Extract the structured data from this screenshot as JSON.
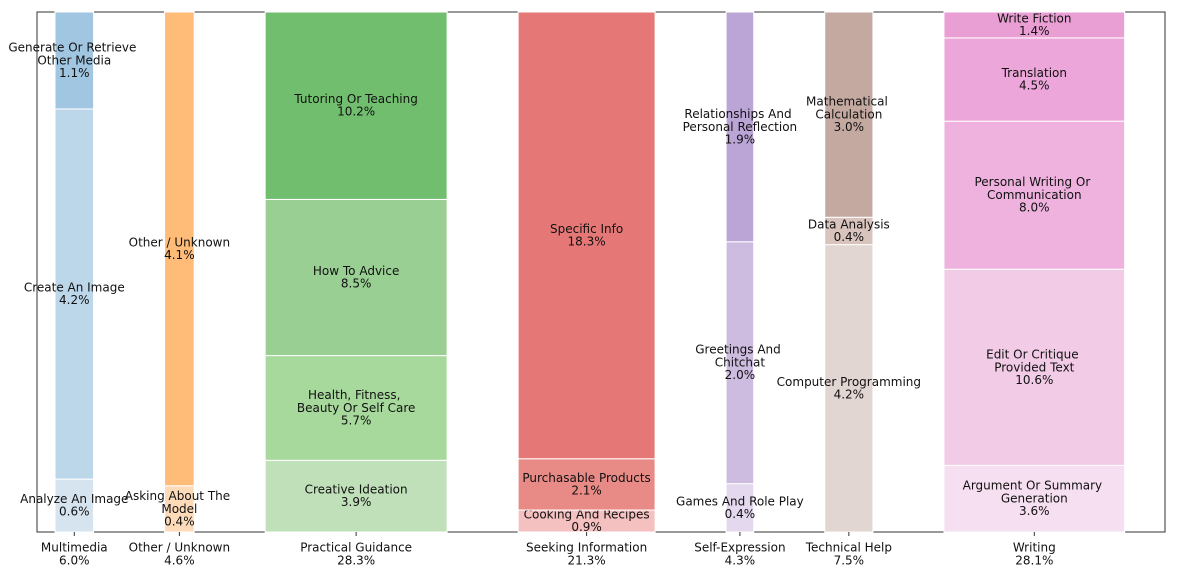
{
  "chart_data": {
    "type": "mosaic",
    "columns": [
      {
        "name": "Multimedia",
        "total": 6.0,
        "total_label": "6.0%",
        "segments": [
          {
            "name": "Analyze An Image",
            "value": 0.6,
            "value_label": "0.6%",
            "color": "#d6e4ef"
          },
          {
            "name": "Create An Image",
            "value": 4.2,
            "value_label": "4.2%",
            "color": "#bdd7ea"
          },
          {
            "name": "Generate Or Retrieve Other Media",
            "value": 1.1,
            "value_label": "1.1%",
            "color": "#a1c6e2"
          }
        ]
      },
      {
        "name": "Other / Unknown",
        "total": 4.6,
        "total_label": "4.6%",
        "segments": [
          {
            "name": "Asking About The Model",
            "value": 0.4,
            "value_label": "0.4%",
            "color": "#fddbb9"
          },
          {
            "name": "Other / Unknown",
            "value": 4.1,
            "value_label": "4.1%",
            "color": "#ffbb78"
          }
        ]
      },
      {
        "name": "Practical Guidance",
        "total": 28.3,
        "total_label": "28.3%",
        "segments": [
          {
            "name": "Creative Ideation",
            "value": 3.9,
            "value_label": "3.9%",
            "color": "#bfe0b8"
          },
          {
            "name": "Health, Fitness, Beauty Or Self Care",
            "value": 5.7,
            "value_label": "5.7%",
            "color": "#a8d99c"
          },
          {
            "name": "How To Advice",
            "value": 8.5,
            "value_label": "8.5%",
            "color": "#9acf93"
          },
          {
            "name": "Tutoring Or Teaching",
            "value": 10.2,
            "value_label": "10.2%",
            "color": "#71bf6e"
          }
        ]
      },
      {
        "name": "Seeking Information",
        "total": 21.3,
        "total_label": "21.3%",
        "segments": [
          {
            "name": "Cooking And Recipes",
            "value": 0.9,
            "value_label": "0.9%",
            "color": "#f4c0c0"
          },
          {
            "name": "Purchasable Products",
            "value": 2.1,
            "value_label": "2.1%",
            "color": "#e88a86"
          },
          {
            "name": "Specific Info",
            "value": 18.3,
            "value_label": "18.3%",
            "color": "#e67777"
          }
        ]
      },
      {
        "name": "Self-Expression",
        "total": 4.3,
        "total_label": "4.3%",
        "segments": [
          {
            "name": "Games And Role Play",
            "value": 0.4,
            "value_label": "0.4%",
            "color": "#e4d8ee"
          },
          {
            "name": "Greetings And Chitchat",
            "value": 2.0,
            "value_label": "2.0%",
            "color": "#cdbbe0"
          },
          {
            "name": "Relationships And Personal Reflection",
            "value": 1.9,
            "value_label": "1.9%",
            "color": "#bba5d6"
          }
        ]
      },
      {
        "name": "Technical Help",
        "total": 7.5,
        "total_label": "7.5%",
        "segments": [
          {
            "name": "Computer Programming",
            "value": 4.2,
            "value_label": "4.2%",
            "color": "#e2d6d2"
          },
          {
            "name": "Data Analysis",
            "value": 0.4,
            "value_label": "0.4%",
            "color": "#d8c3bd"
          },
          {
            "name": "Mathematical Calculation",
            "value": 3.0,
            "value_label": "3.0%",
            "color": "#c4a9a1"
          }
        ]
      },
      {
        "name": "Writing",
        "total": 28.1,
        "total_label": "28.1%",
        "segments": [
          {
            "name": "Argument Or Summary Generation",
            "value": 3.6,
            "value_label": "3.6%",
            "color": "#f6dff0"
          },
          {
            "name": "Edit Or Critique Provided Text",
            "value": 10.6,
            "value_label": "10.6%",
            "color": "#f2cbe6"
          },
          {
            "name": "Personal Writing Or Communication",
            "value": 8.0,
            "value_label": "8.0%",
            "color": "#efb2de"
          },
          {
            "name": "Translation",
            "value": 4.5,
            "value_label": "4.5%",
            "color": "#eda6da"
          },
          {
            "name": "Write Fiction",
            "value": 1.4,
            "value_label": "1.4%",
            "color": "#e99ed4"
          }
        ]
      }
    ]
  }
}
